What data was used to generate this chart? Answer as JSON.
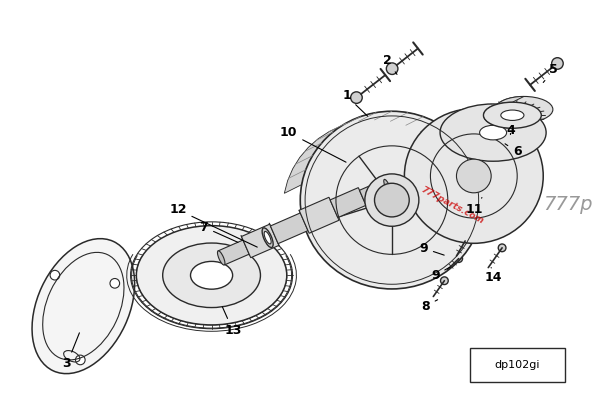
{
  "background_color": "#ffffff",
  "line_color": "#2a2a2a",
  "watermark_text": "777parts.com",
  "watermark_color": "#cc0000",
  "brand_text": "777p",
  "brand_color": "#999999",
  "code_text": "dp102gi",
  "figsize": [
    6.0,
    4.05
  ],
  "dpi": 100
}
